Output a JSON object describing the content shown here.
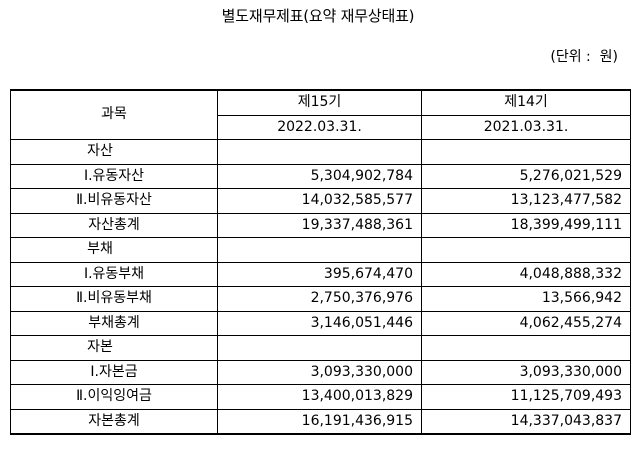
{
  "title": "별도재무제표(요약 재무상태표)",
  "unit": "(단위 :  원)",
  "table": {
    "account_header": "과목",
    "period_cur": "제15기",
    "period_prev": "제14기",
    "date_cur": "2022.03.31.",
    "date_prev": "2021.03.31.",
    "rows": [
      {
        "label": "자산",
        "cur": "",
        "prev": ""
      },
      {
        "label": "Ⅰ.유동자산",
        "cur": "5,304,902,784",
        "prev": "5,276,021,529"
      },
      {
        "label": "Ⅱ.비유동자산",
        "cur": "14,032,585,577",
        "prev": "13,123,477,582"
      },
      {
        "label": "자산총계",
        "cur": "19,337,488,361",
        "prev": "18,399,499,111"
      },
      {
        "label": "부채",
        "cur": "",
        "prev": ""
      },
      {
        "label": "Ⅰ.유동부채",
        "cur": "395,674,470",
        "prev": "4,048,888,332"
      },
      {
        "label": "Ⅱ.비유동부채",
        "cur": "2,750,376,976",
        "prev": "13,566,942"
      },
      {
        "label": "부채총계",
        "cur": "3,146,051,446",
        "prev": "4,062,455,274"
      },
      {
        "label": "자본",
        "cur": "",
        "prev": ""
      },
      {
        "label": "Ⅰ.자본금",
        "cur": "3,093,330,000",
        "prev": "3,093,330,000"
      },
      {
        "label": "Ⅱ.이익잉여금",
        "cur": "13,400,013,829",
        "prev": "11,125,709,493"
      },
      {
        "label": "자본총계",
        "cur": "16,191,436,915",
        "prev": "14,337,043,837"
      }
    ]
  }
}
